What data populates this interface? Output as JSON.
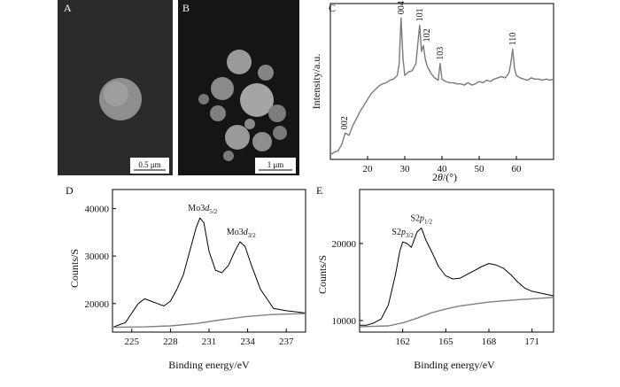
{
  "panels": {
    "A": {
      "letter": "A",
      "scale_bar": "0.5 μm",
      "image": "SEM micrograph of a single round particle on a dark background"
    },
    "B": {
      "letter": "B",
      "scale_bar": "1 μm",
      "image": "SEM micrograph of a cluster of spherical particles"
    }
  },
  "colors": {
    "xrd_line": "#7a7a7a",
    "xps_line": "#000000",
    "background_line": "#808080",
    "sem_background": "#2b2b2b"
  },
  "chart_data": [
    {
      "id": "C",
      "letter": "C",
      "type": "line",
      "title": "",
      "xlabel": "2θ/(°)",
      "ylabel": "Intensity/a.u.",
      "xlim": [
        10,
        70
      ],
      "xticks": [
        20,
        30,
        40,
        50,
        60
      ],
      "y_ticks_shown": false,
      "grid": false,
      "series": [
        {
          "name": "",
          "x": [
            10,
            11,
            12,
            13,
            14,
            15,
            16,
            17,
            18,
            19,
            20,
            21,
            22,
            23,
            24,
            25,
            26,
            27,
            28,
            28.5,
            29,
            29.5,
            30,
            31,
            32,
            33,
            33.5,
            34,
            34.5,
            35,
            35.5,
            36,
            37,
            38,
            39,
            39.5,
            40,
            41,
            42,
            43,
            44,
            45,
            46,
            47,
            48,
            49,
            50,
            51,
            52,
            53,
            54,
            55,
            56,
            57,
            58,
            58.5,
            59,
            59.5,
            60,
            61,
            62,
            63,
            64,
            65,
            66,
            67,
            68,
            69,
            70
          ],
          "y": [
            4,
            6,
            7,
            12,
            22,
            20,
            28,
            34,
            40,
            45,
            50,
            55,
            58,
            61,
            63,
            64,
            66,
            67,
            70,
            80,
            118,
            85,
            70,
            73,
            74,
            80,
            96,
            112,
            90,
            95,
            84,
            78,
            72,
            68,
            66,
            80,
            67,
            65,
            64,
            64,
            63,
            63,
            62,
            64,
            62,
            63,
            65,
            64,
            66,
            65,
            67,
            68,
            69,
            68,
            72,
            80,
            92,
            76,
            70,
            68,
            67,
            66,
            68,
            67,
            67,
            66,
            67,
            66,
            67
          ]
        }
      ],
      "annotations": [
        {
          "label": "002",
          "x": 13.8,
          "y": 22
        },
        {
          "label": "004",
          "x": 29,
          "y": 118
        },
        {
          "label": "101",
          "x": 34,
          "y": 112
        },
        {
          "label": "102",
          "x": 36,
          "y": 95
        },
        {
          "label": "103",
          "x": 39.5,
          "y": 80
        },
        {
          "label": "110",
          "x": 59,
          "y": 92
        }
      ]
    },
    {
      "id": "D",
      "letter": "D",
      "type": "line",
      "title": "",
      "xlabel": "Binding energy/eV",
      "ylabel": "Counts/S",
      "xlim": [
        223.5,
        238.5
      ],
      "ylim": [
        14000,
        44000
      ],
      "xticks": [
        225,
        228,
        231,
        234,
        237
      ],
      "yticks": [
        20000,
        30000,
        40000
      ],
      "grid": false,
      "series": [
        {
          "name": "",
          "x": [
            223.5,
            224,
            224.5,
            225,
            225.5,
            226,
            226.5,
            227,
            227.5,
            228,
            228.5,
            229,
            229.5,
            230,
            230.3,
            230.6,
            231,
            231.5,
            232,
            232.5,
            233,
            233.4,
            233.8,
            234.3,
            235,
            235.5,
            236,
            237,
            238,
            238.5
          ],
          "y": [
            15000,
            15500,
            16000,
            18000,
            20000,
            21000,
            20500,
            20000,
            19500,
            20500,
            23000,
            26000,
            31000,
            36000,
            38000,
            37000,
            31000,
            27000,
            26500,
            28000,
            31000,
            33000,
            32000,
            28000,
            23000,
            21000,
            19000,
            18500,
            18200,
            18000
          ]
        },
        {
          "name": "",
          "x": [
            223.5,
            226,
            228,
            230,
            232,
            234,
            236,
            238.5
          ],
          "y": [
            15000,
            15100,
            15300,
            15800,
            16600,
            17300,
            17700,
            17900
          ]
        }
      ],
      "annotations": [
        {
          "label": "Mo3",
          "sub": "5/2",
          "x": 230.5,
          "y": 38000
        },
        {
          "label": "Mo3",
          "sub": "3/2",
          "x": 233.5,
          "y": 33000
        }
      ]
    },
    {
      "id": "E",
      "letter": "E",
      "type": "line",
      "title": "",
      "xlabel": "Binding energy/eV",
      "ylabel": "Counts/S",
      "xlim": [
        159,
        172.5
      ],
      "ylim": [
        8500,
        27000
      ],
      "xticks": [
        162,
        165,
        168,
        171
      ],
      "yticks": [
        10000,
        20000
      ],
      "grid": false,
      "series": [
        {
          "name": "",
          "x": [
            159,
            159.5,
            160,
            160.5,
            161,
            161.5,
            161.8,
            162,
            162.3,
            162.6,
            163,
            163.3,
            163.6,
            164,
            164.5,
            165,
            165.5,
            166,
            166.5,
            167,
            167.5,
            168,
            168.5,
            169,
            169.5,
            170,
            170.5,
            171,
            171.5,
            172,
            172.5
          ],
          "y": [
            9400,
            9400,
            9700,
            10200,
            12000,
            16000,
            19000,
            20200,
            20000,
            19500,
            21500,
            22000,
            20500,
            19000,
            17000,
            15800,
            15400,
            15500,
            16000,
            16500,
            17000,
            17400,
            17200,
            16800,
            16000,
            15000,
            14200,
            13800,
            13600,
            13400,
            13200
          ]
        },
        {
          "name": "",
          "x": [
            159,
            161,
            162,
            163,
            164,
            165,
            166,
            168,
            170,
            172.5
          ],
          "y": [
            9200,
            9300,
            9700,
            10300,
            11000,
            11500,
            11900,
            12400,
            12700,
            13000
          ]
        }
      ],
      "annotations": [
        {
          "label": "S2",
          "sub": "3/2",
          "x": 162,
          "y": 20200
        },
        {
          "label": "S2",
          "sub": "1/2",
          "x": 163.3,
          "y": 22000
        }
      ]
    }
  ]
}
